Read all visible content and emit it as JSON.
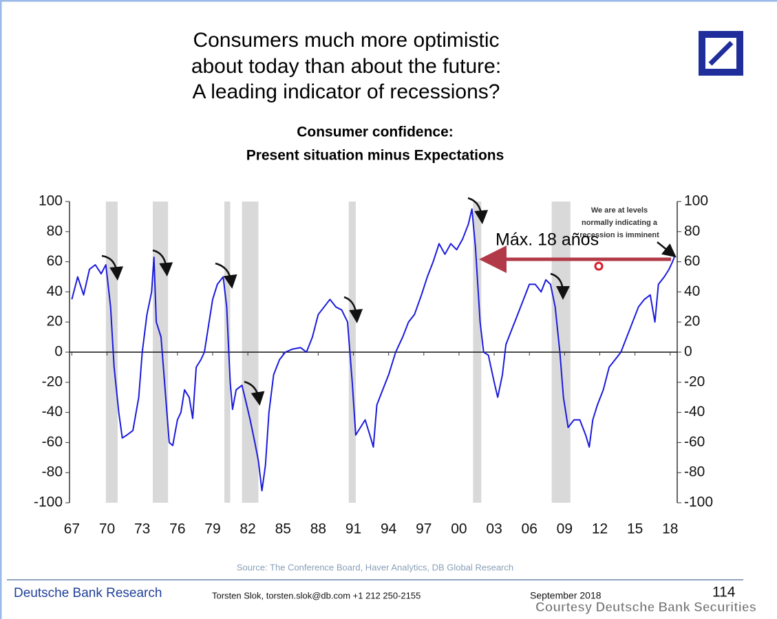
{
  "chart_data": {
    "type": "line",
    "title": [
      "Consumers much more optimistic",
      "about today than about the future:",
      "A leading indicator of recessions?"
    ],
    "subtitle": [
      "Consumer confidence:",
      "Present situation minus Expectations"
    ],
    "x": [
      1967.0,
      1967.5,
      1968.0,
      1968.5,
      1969.0,
      1969.5,
      1969.9,
      1970.3,
      1970.6,
      1971.0,
      1971.3,
      1971.7,
      1972.2,
      1972.7,
      1973.0,
      1973.4,
      1973.8,
      1974.0,
      1974.2,
      1974.6,
      1975.0,
      1975.3,
      1975.6,
      1976.0,
      1976.3,
      1976.6,
      1977.0,
      1977.3,
      1977.6,
      1978.0,
      1978.3,
      1978.6,
      1979.0,
      1979.4,
      1979.9,
      1980.2,
      1980.5,
      1980.7,
      1981.0,
      1981.5,
      1981.9,
      1982.2,
      1982.6,
      1982.9,
      1983.2,
      1983.5,
      1983.8,
      1984.2,
      1984.7,
      1985.2,
      1985.8,
      1986.5,
      1987.0,
      1987.5,
      1988.0,
      1988.5,
      1989.0,
      1989.5,
      1990.0,
      1990.5,
      1990.9,
      1991.2,
      1991.6,
      1992.0,
      1992.4,
      1992.7,
      1993.0,
      1993.5,
      1994.0,
      1994.6,
      1995.2,
      1995.7,
      1996.2,
      1996.8,
      1997.3,
      1997.8,
      1998.3,
      1998.8,
      1999.3,
      1999.8,
      2000.3,
      2000.8,
      2001.1,
      2001.4,
      2001.8,
      2002.1,
      2002.5,
      2003.0,
      2003.3,
      2003.7,
      2004.0,
      2004.5,
      2005.0,
      2005.5,
      2006.0,
      2006.5,
      2007.0,
      2007.4,
      2007.8,
      2008.2,
      2008.6,
      2008.9,
      2009.3,
      2009.8,
      2010.3,
      2010.8,
      2011.1,
      2011.4,
      2011.8,
      2012.3,
      2012.8,
      2013.3,
      2013.8,
      2014.3,
      2014.8,
      2015.3,
      2015.8,
      2016.3,
      2016.7,
      2017.0,
      2017.5,
      2017.9,
      2018.2,
      2018.4
    ],
    "values": [
      35,
      50,
      38,
      55,
      58,
      52,
      58,
      30,
      -10,
      -40,
      -57,
      -55,
      -52,
      -30,
      0,
      25,
      40,
      63,
      20,
      10,
      -30,
      -60,
      -62,
      -45,
      -40,
      -25,
      -30,
      -44,
      -10,
      -5,
      0,
      15,
      35,
      45,
      50,
      30,
      -20,
      -38,
      -25,
      -22,
      -35,
      -45,
      -60,
      -72,
      -92,
      -75,
      -40,
      -15,
      -5,
      0,
      2,
      3,
      0,
      10,
      25,
      30,
      35,
      30,
      28,
      20,
      -20,
      -55,
      -50,
      -45,
      -55,
      -63,
      -35,
      -25,
      -15,
      0,
      10,
      20,
      25,
      38,
      50,
      60,
      72,
      65,
      72,
      68,
      75,
      85,
      95,
      70,
      20,
      0,
      -2,
      -20,
      -30,
      -15,
      5,
      15,
      25,
      35,
      45,
      45,
      40,
      48,
      45,
      30,
      0,
      -30,
      -50,
      -45,
      -45,
      -55,
      -63,
      -45,
      -35,
      -25,
      -10,
      -5,
      0,
      10,
      20,
      30,
      35,
      38,
      20,
      45,
      50,
      55,
      60,
      64
    ],
    "color": "#1a1adc",
    "recessions": [
      [
        1969.9,
        1970.9
      ],
      [
        1973.9,
        1975.2
      ],
      [
        1980.0,
        1980.5
      ],
      [
        1981.5,
        1982.9
      ],
      [
        1990.6,
        1991.2
      ],
      [
        2001.2,
        2001.9
      ],
      [
        2007.9,
        2009.5
      ]
    ],
    "xlim": [
      1966.8,
      2018.6
    ],
    "xticks": [
      {
        "value": 1967,
        "label": "67"
      },
      {
        "value": 1970,
        "label": "70"
      },
      {
        "value": 1973,
        "label": "73"
      },
      {
        "value": 1976,
        "label": "76"
      },
      {
        "value": 1979,
        "label": "79"
      },
      {
        "value": 1982,
        "label": "82"
      },
      {
        "value": 1985,
        "label": "85"
      },
      {
        "value": 1988,
        "label": "88"
      },
      {
        "value": 1991,
        "label": "91"
      },
      {
        "value": 1994,
        "label": "94"
      },
      {
        "value": 1997,
        "label": "97"
      },
      {
        "value": 2000,
        "label": "00"
      },
      {
        "value": 2003,
        "label": "03"
      },
      {
        "value": 2006,
        "label": "06"
      },
      {
        "value": 2009,
        "label": "09"
      },
      {
        "value": 2012,
        "label": "12"
      },
      {
        "value": 2015,
        "label": "15"
      },
      {
        "value": 2018,
        "label": "18"
      }
    ],
    "ylim": [
      -100,
      100
    ],
    "yticks": [
      -100,
      -80,
      -60,
      -40,
      -20,
      0,
      20,
      40,
      60,
      80,
      100
    ],
    "y2lim": [
      -100,
      100
    ],
    "y2ticks": [
      -100,
      -80,
      -60,
      -40,
      -20,
      0,
      20,
      40,
      60,
      80,
      100
    ],
    "annotations": [
      "We are at levels",
      "normally indicating a",
      "recession is imminent",
      "Máx. 18 años"
    ],
    "source": "Source: The Conference Board, Haver Analytics, DB Global Research",
    "footer": {
      "brand": "Deutsche Bank Research",
      "author": "Torsten Slok, torsten.slok@db.com  +1 212 250-2155",
      "date": "September 2018",
      "page": "114",
      "courtesy": "Courtesy Deutsche Bank Securities"
    }
  }
}
